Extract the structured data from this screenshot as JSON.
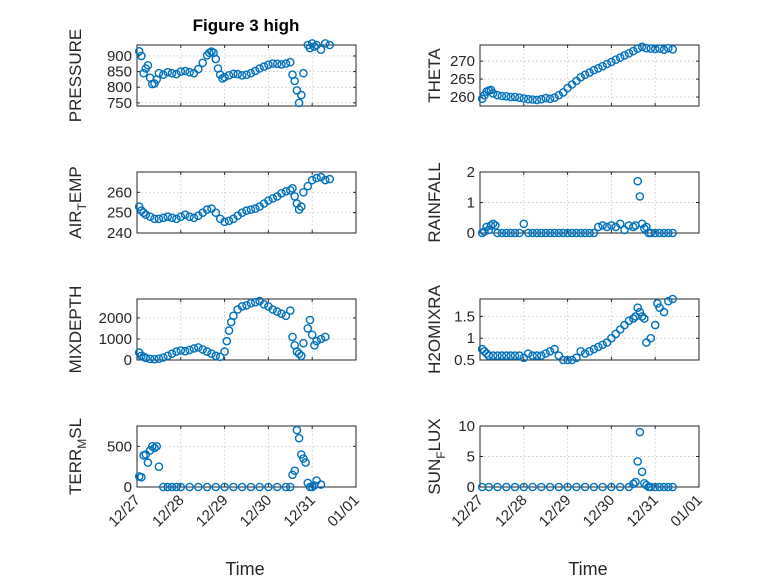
{
  "colors": {
    "marker": "#0072BD",
    "axis": "#262626",
    "grid": "#bdbdbd"
  },
  "title": "Figure 3 high",
  "xaxis": {
    "label": "Time",
    "range": [
      0,
      5
    ],
    "ticks": [
      0,
      1,
      2,
      3,
      4,
      5
    ],
    "tick_labels": [
      "12/27",
      "12/28",
      "12/29",
      "12/30",
      "12/31",
      "01/01"
    ]
  },
  "chart_data": [
    {
      "type": "scatter",
      "marker": "circle",
      "ylabel": "PRESSURE",
      "ylim": [
        740,
        935
      ],
      "yticks": [
        750,
        800,
        850,
        900
      ],
      "ytick_labels": [
        "750",
        "800",
        "850",
        "900"
      ],
      "x": [
        0.05,
        0.1,
        0.15,
        0.2,
        0.25,
        0.3,
        0.35,
        0.4,
        0.45,
        0.5,
        0.6,
        0.7,
        0.8,
        0.9,
        1.0,
        1.1,
        1.2,
        1.3,
        1.4,
        1.5,
        1.6,
        1.65,
        1.7,
        1.75,
        1.8,
        1.85,
        1.9,
        1.95,
        2.0,
        2.1,
        2.2,
        2.3,
        2.4,
        2.5,
        2.6,
        2.7,
        2.8,
        2.9,
        3.0,
        3.1,
        3.2,
        3.3,
        3.4,
        3.5,
        3.55,
        3.6,
        3.65,
        3.7,
        3.75,
        3.8,
        3.9,
        3.95,
        4.0,
        4.05,
        4.1,
        4.2,
        4.3,
        4.4
      ],
      "y": [
        915,
        900,
        845,
        860,
        870,
        830,
        810,
        812,
        825,
        845,
        840,
        848,
        845,
        842,
        850,
        852,
        848,
        845,
        858,
        878,
        902,
        910,
        914,
        910,
        890,
        860,
        840,
        828,
        832,
        838,
        843,
        842,
        838,
        840,
        845,
        852,
        860,
        866,
        872,
        876,
        875,
        873,
        876,
        880,
        840,
        820,
        790,
        750,
        775,
        845,
        935,
        925,
        940,
        930,
        935,
        920,
        940,
        935
      ]
    },
    {
      "type": "scatter",
      "marker": "circle",
      "ylabel": "THETA",
      "ylim": [
        257.5,
        274.5
      ],
      "yticks": [
        260,
        265,
        270
      ],
      "ytick_labels": [
        "260",
        "265",
        "270"
      ],
      "x": [
        0.05,
        0.1,
        0.15,
        0.2,
        0.25,
        0.3,
        0.4,
        0.5,
        0.6,
        0.7,
        0.8,
        0.9,
        1.0,
        1.1,
        1.2,
        1.3,
        1.4,
        1.5,
        1.6,
        1.7,
        1.8,
        1.9,
        2.0,
        2.1,
        2.2,
        2.3,
        2.4,
        2.5,
        2.6,
        2.7,
        2.8,
        2.9,
        3.0,
        3.1,
        3.2,
        3.3,
        3.4,
        3.5,
        3.6,
        3.7,
        3.8,
        3.9,
        4.0,
        4.1,
        4.2,
        4.3,
        4.4
      ],
      "y": [
        259.5,
        260.5,
        261.5,
        261.8,
        262,
        261,
        260.5,
        260.3,
        260.2,
        260,
        260,
        259.8,
        259.6,
        259.4,
        259.3,
        259.2,
        259.4,
        259.7,
        259.5,
        259.8,
        260.5,
        261.3,
        262.5,
        263.5,
        264.5,
        265.5,
        266.2,
        266.8,
        267.5,
        268,
        268.6,
        269.2,
        269.8,
        270.4,
        271,
        271.6,
        272.2,
        272.8,
        273.5,
        274,
        273.6,
        273.5,
        273.4,
        273.5,
        273.2,
        273.6,
        273.3
      ]
    },
    {
      "type": "scatter",
      "marker": "circle",
      "ylabel": "AIR_TEMP",
      "ylim": [
        240,
        270
      ],
      "yticks": [
        240,
        250,
        260
      ],
      "ytick_labels": [
        "240",
        "250",
        "260"
      ],
      "x": [
        0.05,
        0.1,
        0.15,
        0.2,
        0.3,
        0.4,
        0.5,
        0.6,
        0.7,
        0.8,
        0.9,
        1.0,
        1.1,
        1.2,
        1.3,
        1.4,
        1.5,
        1.6,
        1.7,
        1.8,
        1.9,
        2.0,
        2.1,
        2.2,
        2.3,
        2.4,
        2.5,
        2.6,
        2.7,
        2.8,
        2.9,
        3.0,
        3.1,
        3.2,
        3.3,
        3.4,
        3.5,
        3.55,
        3.6,
        3.65,
        3.7,
        3.75,
        3.8,
        3.9,
        4.0,
        4.1,
        4.2,
        4.3,
        4.4
      ],
      "y": [
        253,
        251,
        250,
        249,
        248,
        247,
        247,
        247.5,
        248,
        247.5,
        247,
        248,
        249,
        248,
        247.5,
        248.5,
        250,
        251.5,
        252,
        250,
        247,
        245.5,
        246,
        247,
        248.5,
        250,
        251,
        251.5,
        252,
        253,
        254.5,
        256,
        257,
        258,
        259.5,
        260.5,
        261,
        262,
        258,
        254.5,
        251.5,
        253,
        260,
        263,
        266,
        267,
        267.5,
        266,
        266.5
      ]
    },
    {
      "type": "scatter",
      "marker": "circle",
      "ylabel": "RAINFALL",
      "ylim": [
        0,
        2
      ],
      "yticks": [
        0,
        1,
        2
      ],
      "ytick_labels": [
        "0",
        "1",
        "2"
      ],
      "x": [
        0.05,
        0.1,
        0.15,
        0.2,
        0.25,
        0.3,
        0.35,
        0.4,
        0.5,
        0.6,
        0.7,
        0.8,
        0.9,
        1.0,
        1.1,
        1.2,
        1.3,
        1.4,
        1.5,
        1.6,
        1.7,
        1.8,
        1.9,
        2.0,
        2.1,
        2.2,
        2.3,
        2.4,
        2.5,
        2.6,
        2.7,
        2.8,
        2.9,
        3.0,
        3.1,
        3.2,
        3.3,
        3.4,
        3.5,
        3.55,
        3.6,
        3.65,
        3.7,
        3.75,
        3.8,
        3.85,
        3.9,
        4.0,
        4.1,
        4.2,
        4.3,
        4.4
      ],
      "y": [
        0,
        0.05,
        0.2,
        0.1,
        0.25,
        0.3,
        0.25,
        0,
        0,
        0,
        0,
        0,
        0,
        0.3,
        0,
        0,
        0,
        0,
        0,
        0,
        0,
        0,
        0,
        0,
        0,
        0,
        0,
        0,
        0,
        0,
        0.2,
        0.25,
        0.2,
        0.25,
        0.2,
        0.3,
        0.1,
        0.25,
        0.2,
        0.25,
        1.7,
        1.2,
        0.3,
        0.15,
        0.2,
        0,
        0,
        0,
        0,
        0,
        0,
        0
      ]
    },
    {
      "type": "scatter",
      "marker": "circle",
      "ylabel": "MIXDEPTH",
      "ylim": [
        0,
        2900
      ],
      "yticks": [
        0,
        1000,
        2000
      ],
      "ytick_labels": [
        "0",
        "1000",
        "2000"
      ],
      "x": [
        0.05,
        0.1,
        0.15,
        0.2,
        0.3,
        0.4,
        0.5,
        0.6,
        0.7,
        0.8,
        0.9,
        1.0,
        1.1,
        1.2,
        1.3,
        1.4,
        1.5,
        1.6,
        1.7,
        1.8,
        1.9,
        2.0,
        2.05,
        2.1,
        2.15,
        2.2,
        2.3,
        2.4,
        2.5,
        2.6,
        2.7,
        2.8,
        2.9,
        3.0,
        3.1,
        3.2,
        3.3,
        3.4,
        3.5,
        3.55,
        3.6,
        3.65,
        3.7,
        3.75,
        3.8,
        3.9,
        3.95,
        4.0,
        4.05,
        4.1,
        4.2,
        4.3
      ],
      "y": [
        350,
        200,
        150,
        100,
        50,
        40,
        60,
        120,
        200,
        300,
        400,
        450,
        420,
        480,
        550,
        600,
        500,
        400,
        300,
        200,
        150,
        400,
        900,
        1400,
        1800,
        2100,
        2400,
        2550,
        2600,
        2700,
        2750,
        2800,
        2650,
        2550,
        2400,
        2300,
        2200,
        2100,
        2350,
        1100,
        700,
        400,
        300,
        200,
        800,
        1500,
        1900,
        1200,
        700,
        900,
        1000,
        1100
      ]
    },
    {
      "type": "scatter",
      "marker": "circle",
      "ylabel": "H2OMIXRA",
      "ylim": [
        0.5,
        1.9
      ],
      "yticks": [
        0.5,
        1,
        1.5
      ],
      "ytick_labels": [
        "0.5",
        "1",
        "1.5"
      ],
      "x": [
        0.05,
        0.1,
        0.15,
        0.2,
        0.3,
        0.4,
        0.5,
        0.6,
        0.7,
        0.8,
        0.9,
        1.0,
        1.1,
        1.2,
        1.3,
        1.4,
        1.5,
        1.6,
        1.7,
        1.8,
        1.9,
        2.0,
        2.1,
        2.2,
        2.3,
        2.4,
        2.5,
        2.6,
        2.7,
        2.8,
        2.9,
        3.0,
        3.1,
        3.2,
        3.3,
        3.4,
        3.5,
        3.55,
        3.6,
        3.65,
        3.7,
        3.75,
        3.8,
        3.9,
        4.0,
        4.05,
        4.1,
        4.2,
        4.3,
        4.4
      ],
      "y": [
        0.75,
        0.7,
        0.65,
        0.6,
        0.6,
        0.6,
        0.6,
        0.6,
        0.6,
        0.6,
        0.6,
        0.55,
        0.65,
        0.6,
        0.6,
        0.6,
        0.65,
        0.7,
        0.75,
        0.6,
        0.5,
        0.5,
        0.5,
        0.55,
        0.7,
        0.65,
        0.7,
        0.75,
        0.8,
        0.85,
        0.9,
        1.0,
        1.1,
        1.2,
        1.3,
        1.4,
        1.45,
        1.5,
        1.7,
        1.6,
        1.5,
        1.45,
        0.9,
        1.0,
        1.3,
        1.8,
        1.7,
        1.6,
        1.85,
        1.9
      ]
    },
    {
      "type": "scatter",
      "marker": "circle",
      "ylabel": "TERR_MSL",
      "ylim": [
        0,
        750
      ],
      "yticks": [
        0,
        500
      ],
      "ytick_labels": [
        "0",
        "500"
      ],
      "x": [
        0.05,
        0.1,
        0.15,
        0.2,
        0.25,
        0.3,
        0.35,
        0.4,
        0.45,
        0.5,
        0.6,
        0.7,
        0.8,
        0.9,
        1.0,
        1.2,
        1.4,
        1.6,
        1.8,
        2.0,
        2.2,
        2.4,
        2.6,
        2.8,
        3.0,
        3.2,
        3.4,
        3.5,
        3.55,
        3.6,
        3.65,
        3.7,
        3.75,
        3.8,
        3.85,
        3.9,
        3.95,
        4.0,
        4.05,
        4.1,
        4.2
      ],
      "y": [
        130,
        120,
        390,
        400,
        300,
        450,
        500,
        480,
        500,
        250,
        0,
        0,
        0,
        0,
        0,
        0,
        0,
        0,
        0,
        0,
        0,
        0,
        0,
        0,
        0,
        0,
        0,
        0,
        150,
        200,
        700,
        600,
        400,
        350,
        300,
        50,
        0,
        0,
        20,
        80,
        30
      ]
    },
    {
      "type": "scatter",
      "marker": "circle",
      "ylabel": "SUN_FLUX",
      "ylim": [
        0,
        10
      ],
      "yticks": [
        0,
        5,
        10
      ],
      "ytick_labels": [
        "0",
        "5",
        "10"
      ],
      "x": [
        0.05,
        0.2,
        0.4,
        0.6,
        0.8,
        1.0,
        1.2,
        1.4,
        1.6,
        1.8,
        2.0,
        2.2,
        2.4,
        2.6,
        2.8,
        3.0,
        3.2,
        3.4,
        3.5,
        3.55,
        3.6,
        3.65,
        3.7,
        3.75,
        3.8,
        3.85,
        3.9,
        4.0,
        4.1,
        4.2,
        4.3,
        4.4
      ],
      "y": [
        0,
        0,
        0,
        0,
        0,
        0,
        0,
        0,
        0,
        0,
        0,
        0,
        0,
        0,
        0,
        0,
        0,
        0,
        0.5,
        0.8,
        4.2,
        9,
        2.5,
        0.6,
        0.3,
        0,
        0,
        0,
        0,
        0,
        0,
        0
      ]
    }
  ]
}
